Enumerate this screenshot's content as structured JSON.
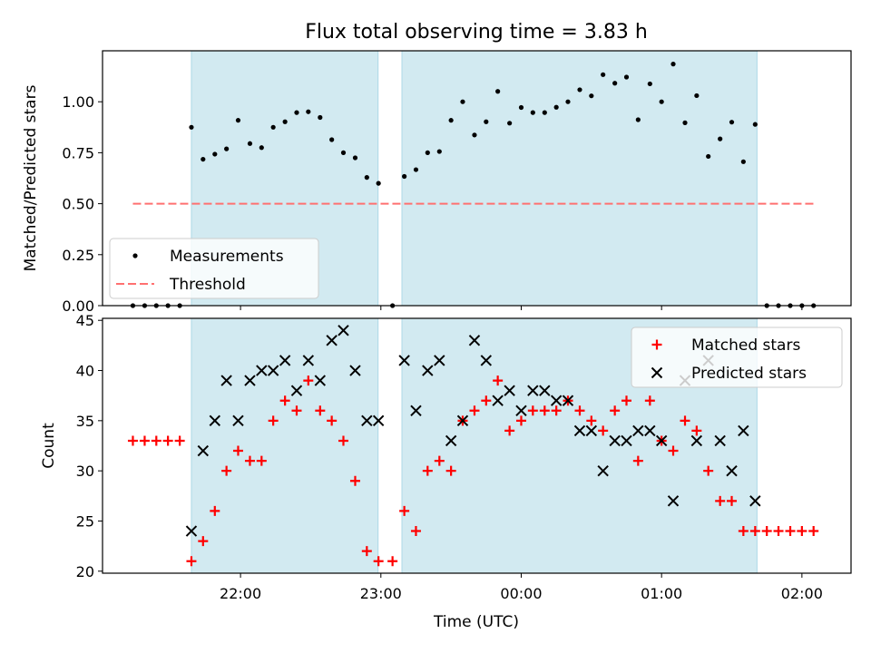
{
  "chart_data": {
    "title": "Flux total observing time = 3.83 h",
    "xlabel": "Time (UTC)",
    "x_tick_labels": [
      "22:00",
      "23:00",
      "00:00",
      "01:00",
      "02:00"
    ],
    "x_tick_hours": [
      22,
      23,
      24,
      25,
      26
    ],
    "xlim_hours": [
      21.0167,
      26.35
    ],
    "shaded_intervals_hours": [
      [
        21.65,
        22.98
      ],
      [
        23.15,
        25.68
      ]
    ],
    "shade_color": "#add8e6",
    "panels": [
      {
        "type": "scatter",
        "ylabel": "Matched/Predicted stars",
        "ylim": [
          0,
          1.25
        ],
        "y_ticks": [
          0,
          0.25,
          0.5,
          0.75,
          1.0
        ],
        "y_tick_labels": [
          "0.00",
          "0.25",
          "0.50",
          "0.75",
          "1.00"
        ],
        "legend_position": "lower-left",
        "series": [
          {
            "name": "Measurements",
            "marker": "dot",
            "color": "#000000",
            "points": [
              [
                21.233,
                0
              ],
              [
                21.317,
                0
              ],
              [
                21.4,
                0
              ],
              [
                21.483,
                0
              ],
              [
                21.567,
                0
              ],
              [
                21.65,
                0.875
              ],
              [
                21.733,
                0.718
              ],
              [
                21.817,
                0.743
              ],
              [
                21.9,
                0.769
              ],
              [
                21.983,
                0.909
              ],
              [
                22.067,
                0.795
              ],
              [
                22.15,
                0.775
              ],
              [
                22.233,
                0.875
              ],
              [
                22.317,
                0.902
              ],
              [
                22.4,
                0.947
              ],
              [
                22.483,
                0.951
              ],
              [
                22.567,
                0.923
              ],
              [
                22.65,
                0.814
              ],
              [
                22.733,
                0.75
              ],
              [
                22.817,
                0.725
              ],
              [
                22.9,
                0.629
              ],
              [
                22.983,
                0.6
              ],
              [
                23.083,
                0
              ],
              [
                23.167,
                0.634
              ],
              [
                23.25,
                0.667
              ],
              [
                23.333,
                0.75
              ],
              [
                23.417,
                0.756
              ],
              [
                23.5,
                0.909
              ],
              [
                23.583,
                1.0
              ],
              [
                23.667,
                0.837
              ],
              [
                23.75,
                0.902
              ],
              [
                23.833,
                1.051
              ],
              [
                23.917,
                0.895
              ],
              [
                24.0,
                0.972
              ],
              [
                24.083,
                0.947
              ],
              [
                24.167,
                0.947
              ],
              [
                24.25,
                0.973
              ],
              [
                24.333,
                1.0
              ],
              [
                24.417,
                1.059
              ],
              [
                24.5,
                1.029
              ],
              [
                24.583,
                1.133
              ],
              [
                24.667,
                1.091
              ],
              [
                24.75,
                1.121
              ],
              [
                24.833,
                0.912
              ],
              [
                24.917,
                1.088
              ],
              [
                25.0,
                1.0
              ],
              [
                25.083,
                1.185
              ],
              [
                25.167,
                0.897
              ],
              [
                25.25,
                1.03
              ],
              [
                25.333,
                0.732
              ],
              [
                25.417,
                0.818
              ],
              [
                25.5,
                0.9
              ],
              [
                25.583,
                0.706
              ],
              [
                25.667,
                0.889
              ],
              [
                25.75,
                0
              ],
              [
                25.833,
                0
              ],
              [
                25.917,
                0
              ],
              [
                26.0,
                0
              ],
              [
                26.083,
                0
              ]
            ]
          },
          {
            "name": "Threshold",
            "marker": "dashed-line",
            "color": "#ff7070",
            "points": [
              [
                21.233,
                0.5
              ],
              [
                26.083,
                0.5
              ]
            ]
          }
        ]
      },
      {
        "type": "scatter",
        "ylabel": "Count",
        "ylim": [
          19.8,
          45.2
        ],
        "y_ticks": [
          20,
          25,
          30,
          35,
          40,
          45
        ],
        "y_tick_labels": [
          "20",
          "25",
          "30",
          "35",
          "40",
          "45"
        ],
        "legend_position": "top-right",
        "series": [
          {
            "name": "Matched stars",
            "marker": "plus",
            "color": "#ff0000",
            "points": [
              [
                21.233,
                33
              ],
              [
                21.317,
                33
              ],
              [
                21.4,
                33
              ],
              [
                21.483,
                33
              ],
              [
                21.567,
                33
              ],
              [
                21.65,
                21
              ],
              [
                21.733,
                23
              ],
              [
                21.817,
                26
              ],
              [
                21.9,
                30
              ],
              [
                21.983,
                32
              ],
              [
                22.067,
                31
              ],
              [
                22.15,
                31
              ],
              [
                22.233,
                35
              ],
              [
                22.317,
                37
              ],
              [
                22.4,
                36
              ],
              [
                22.483,
                39
              ],
              [
                22.567,
                36
              ],
              [
                22.65,
                35
              ],
              [
                22.733,
                33
              ],
              [
                22.817,
                29
              ],
              [
                22.9,
                22
              ],
              [
                22.983,
                21
              ],
              [
                23.083,
                21
              ],
              [
                23.167,
                26
              ],
              [
                23.25,
                24
              ],
              [
                23.333,
                30
              ],
              [
                23.417,
                31
              ],
              [
                23.5,
                30
              ],
              [
                23.583,
                35
              ],
              [
                23.667,
                36
              ],
              [
                23.75,
                37
              ],
              [
                23.833,
                39
              ],
              [
                23.917,
                34
              ],
              [
                24.0,
                35
              ],
              [
                24.083,
                36
              ],
              [
                24.167,
                36
              ],
              [
                24.25,
                36
              ],
              [
                24.333,
                37
              ],
              [
                24.417,
                36
              ],
              [
                24.5,
                35
              ],
              [
                24.583,
                34
              ],
              [
                24.667,
                36
              ],
              [
                24.75,
                37
              ],
              [
                24.833,
                31
              ],
              [
                24.917,
                37
              ],
              [
                25.0,
                33
              ],
              [
                25.083,
                32
              ],
              [
                25.167,
                35
              ],
              [
                25.25,
                34
              ],
              [
                25.333,
                30
              ],
              [
                25.417,
                27
              ],
              [
                25.5,
                27
              ],
              [
                25.583,
                24
              ],
              [
                25.667,
                24
              ],
              [
                25.75,
                24
              ],
              [
                25.833,
                24
              ],
              [
                25.917,
                24
              ],
              [
                26.0,
                24
              ],
              [
                26.083,
                24
              ]
            ]
          },
          {
            "name": "Predicted stars",
            "marker": "x",
            "color": "#000000",
            "points": [
              [
                21.65,
                24
              ],
              [
                21.733,
                32
              ],
              [
                21.817,
                35
              ],
              [
                21.9,
                39
              ],
              [
                21.983,
                35
              ],
              [
                22.067,
                39
              ],
              [
                22.15,
                40
              ],
              [
                22.233,
                40
              ],
              [
                22.317,
                41
              ],
              [
                22.4,
                38
              ],
              [
                22.483,
                41
              ],
              [
                22.567,
                39
              ],
              [
                22.65,
                43
              ],
              [
                22.733,
                44
              ],
              [
                22.817,
                40
              ],
              [
                22.9,
                35
              ],
              [
                22.983,
                35
              ],
              [
                23.167,
                41
              ],
              [
                23.25,
                36
              ],
              [
                23.333,
                40
              ],
              [
                23.417,
                41
              ],
              [
                23.5,
                33
              ],
              [
                23.583,
                35
              ],
              [
                23.667,
                43
              ],
              [
                23.75,
                41
              ],
              [
                23.833,
                37
              ],
              [
                23.917,
                38
              ],
              [
                24.0,
                36
              ],
              [
                24.083,
                38
              ],
              [
                24.167,
                38
              ],
              [
                24.25,
                37
              ],
              [
                24.333,
                37
              ],
              [
                24.417,
                34
              ],
              [
                24.5,
                34
              ],
              [
                24.583,
                30
              ],
              [
                24.667,
                33
              ],
              [
                24.75,
                33
              ],
              [
                24.833,
                34
              ],
              [
                24.917,
                34
              ],
              [
                25.0,
                33
              ],
              [
                25.083,
                27
              ],
              [
                25.167,
                39
              ],
              [
                25.25,
                33
              ],
              [
                25.333,
                41
              ],
              [
                25.417,
                33
              ],
              [
                25.5,
                30
              ],
              [
                25.583,
                34
              ],
              [
                25.667,
                27
              ]
            ]
          }
        ]
      }
    ]
  }
}
